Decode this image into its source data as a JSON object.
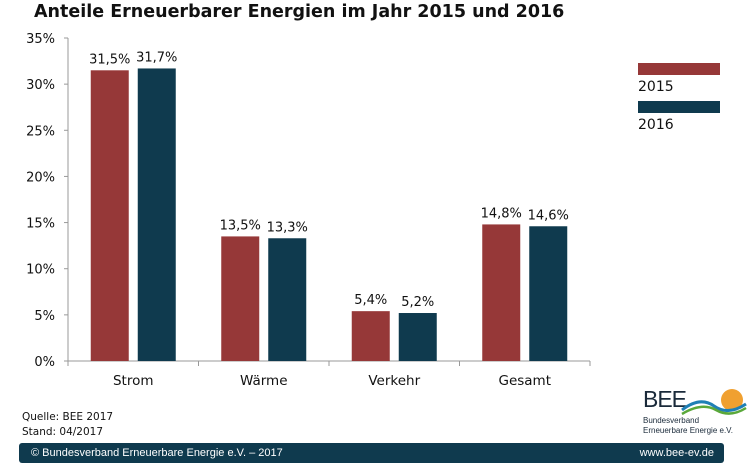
{
  "chart_data": {
    "type": "bar",
    "title": "Anteile Erneuerbarer Energien im Jahr 2015 und 2016",
    "xlabel": "",
    "ylabel": "",
    "categories": [
      "Strom",
      "Wärme",
      "Verkehr",
      "Gesamt"
    ],
    "series": [
      {
        "name": "2015",
        "color": "#963838",
        "values": [
          31.5,
          13.5,
          5.4,
          14.8
        ],
        "labels": [
          "31,5%",
          "13,5%",
          "5,4%",
          "14,8%"
        ]
      },
      {
        "name": "2016",
        "color": "#0f3a4e",
        "values": [
          31.7,
          13.3,
          5.2,
          14.6
        ],
        "labels": [
          "31,7%",
          "13,3%",
          "5,2%",
          "14,6%"
        ]
      }
    ],
    "ylim": [
      0,
      35
    ],
    "yticks": [
      0,
      5,
      10,
      15,
      20,
      25,
      30,
      35
    ],
    "ytick_labels": [
      "0%",
      "5%",
      "10%",
      "15%",
      "20%",
      "25%",
      "30%",
      "35%"
    ],
    "grid": false,
    "legend_position": "right"
  },
  "source": {
    "quelle": "Quelle: BEE 2017",
    "stand": "Stand: 04/2017"
  },
  "logo": {
    "name": "BEE",
    "line1": "Bundesverband",
    "line2": "Erneuerbare Energie e.V."
  },
  "footer": {
    "copyright": "© Bundesverband Erneuerbare Energie e.V. – 2017",
    "website": "www.bee-ev.de"
  }
}
